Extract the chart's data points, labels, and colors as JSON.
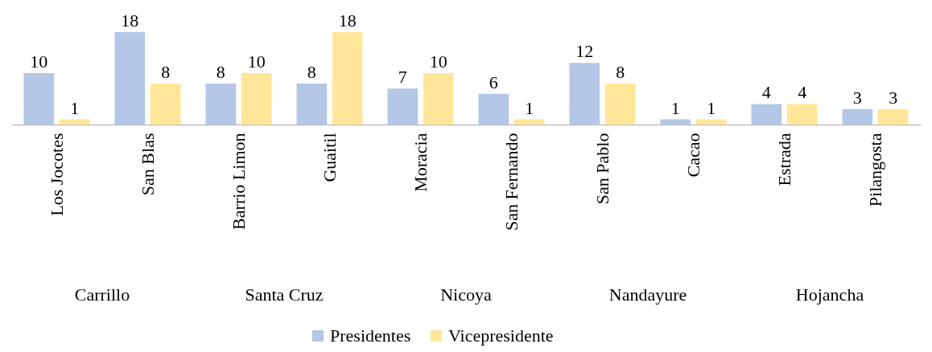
{
  "chart_data": {
    "type": "bar",
    "categories": [
      "Los Jocotes",
      "San Blas",
      "Barrio Limon",
      "Guaitil",
      "Moracia",
      "San Fernando",
      "San Pablo",
      "Cacao",
      "Estrada",
      "Pilangosta"
    ],
    "series": [
      {
        "name": "Presidentes",
        "color": "#b4c7e7",
        "values": [
          10,
          18,
          8,
          8,
          7,
          6,
          12,
          1,
          4,
          3
        ]
      },
      {
        "name": "Vicepresidente",
        "color": "#ffe699",
        "values": [
          1,
          8,
          10,
          18,
          10,
          1,
          8,
          1,
          4,
          3
        ]
      }
    ],
    "annotations": [
      "Carrillo",
      "Santa Cruz",
      "Nicoya",
      "Nandayure",
      "Hojancha"
    ],
    "data_labels": true,
    "legend": "bottom",
    "grid": false
  }
}
